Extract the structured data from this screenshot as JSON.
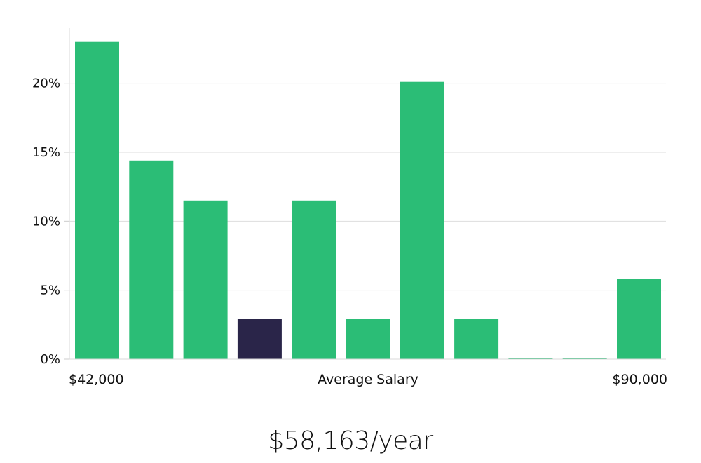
{
  "chart_data": {
    "type": "bar",
    "title": "",
    "xlabel": "Average Salary",
    "ylabel": "",
    "x_min_label": "$42,000",
    "x_max_label": "$90,000",
    "ylim": [
      0,
      24
    ],
    "yticks": [
      0,
      5,
      10,
      15,
      20
    ],
    "ytick_labels": [
      "0%",
      "5%",
      "10%",
      "15%",
      "20%"
    ],
    "grid": true,
    "values": [
      23.0,
      14.4,
      11.5,
      2.9,
      11.5,
      2.9,
      20.1,
      2.9,
      0,
      0,
      5.8
    ],
    "highlight_index": 3,
    "bar_color": "#2bbd76",
    "highlight_color": "#2a2549"
  },
  "summary": {
    "salary_text": "$58,163/year"
  }
}
